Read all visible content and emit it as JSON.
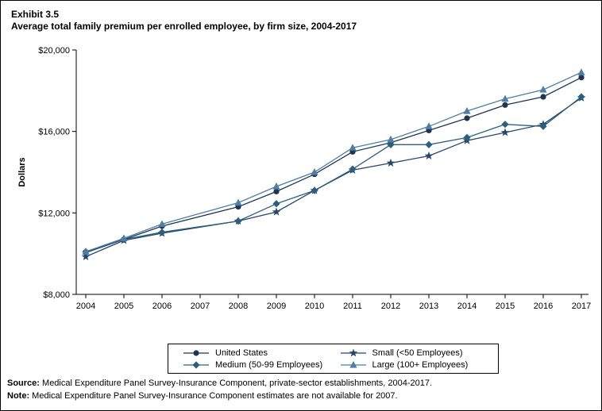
{
  "page": {
    "exhibit_label": "Exhibit 3.5",
    "title": "Average total family premium per enrolled employee, by firm size, 2004-2017",
    "source_label": "Source:",
    "source_text": " Medical Expenditure Panel Survey-Insurance Component, private-sector establishments, 2004-2017.",
    "note_label": "Note:",
    "note_text": " Medical Expenditure Panel Survey-Insurance Component estimates are not available for 2007."
  },
  "chart_data": {
    "type": "line",
    "title": "Average total family premium per enrolled employee, by firm size, 2004-2017",
    "xlabel": "",
    "ylabel": "Dollars",
    "ylim": [
      8000,
      20000
    ],
    "yticks": [
      8000,
      12000,
      16000,
      20000
    ],
    "ytick_labels": [
      "$8,000",
      "$12,000",
      "$16,000",
      "$20,000"
    ],
    "x": [
      2004,
      2005,
      2006,
      2007,
      2008,
      2009,
      2010,
      2011,
      2012,
      2013,
      2014,
      2015,
      2016,
      2017
    ],
    "grid": false,
    "legend_position": "bottom",
    "missing_data_note": "2007 estimates not available",
    "series": [
      {
        "name": "United States",
        "marker": "circle",
        "color": "#1f3552",
        "values": [
          10050,
          10700,
          11350,
          null,
          12300,
          13050,
          13900,
          15000,
          15450,
          16050,
          16650,
          17300,
          17700,
          18650
        ]
      },
      {
        "name": "Small (<50 Employees)",
        "marker": "star",
        "color": "#24476b",
        "values": [
          9850,
          10650,
          11000,
          null,
          11600,
          12050,
          13100,
          14100,
          14450,
          14800,
          15550,
          15950,
          16350,
          17650
        ]
      },
      {
        "name": "Medium (50-99 Employees)",
        "marker": "diamond",
        "color": "#2d5f7c",
        "values": [
          10100,
          10700,
          11050,
          null,
          11600,
          12450,
          13100,
          14150,
          15350,
          15350,
          15700,
          16350,
          16250,
          17700
        ]
      },
      {
        "name": "Large (100+ Employees)",
        "marker": "triangle",
        "color": "#4f7ea3",
        "values": [
          10100,
          10750,
          11450,
          null,
          12500,
          13300,
          14000,
          15200,
          15600,
          16250,
          17000,
          17600,
          18050,
          18900
        ]
      }
    ]
  }
}
